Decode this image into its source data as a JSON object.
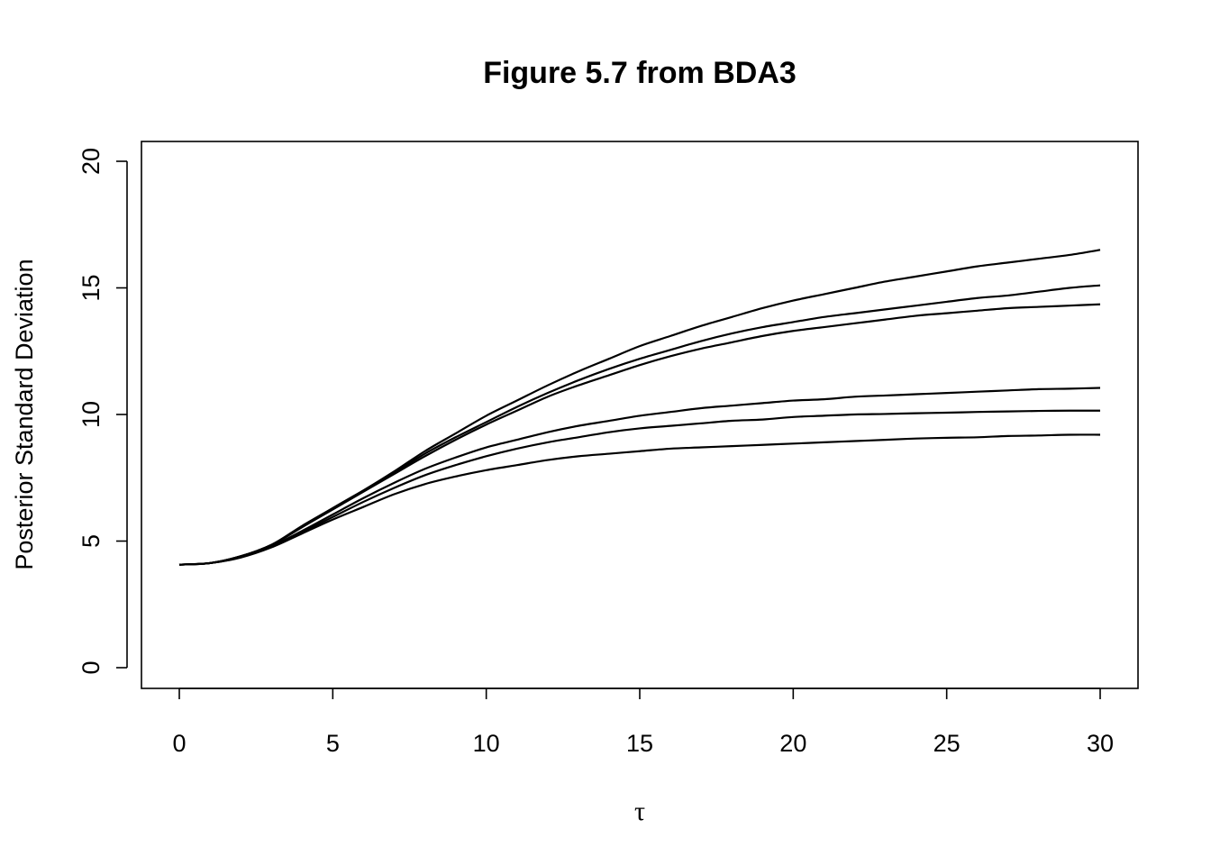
{
  "chart_data": {
    "type": "line",
    "title": "Figure 5.7 from BDA3",
    "xlabel": "τ",
    "ylabel": "Posterior Standard Deviation",
    "xlim": [
      0,
      30
    ],
    "ylim": [
      0,
      20
    ],
    "xticks": [
      "0",
      "5",
      "10",
      "15",
      "20",
      "25",
      "30"
    ],
    "yticks": [
      "0",
      "5",
      "10",
      "15",
      "20"
    ],
    "grid": false,
    "legend": "none",
    "line_color": "#000000",
    "x": [
      0,
      1,
      2,
      3,
      4,
      5,
      6,
      7,
      8,
      9,
      10,
      11,
      12,
      13,
      14,
      15,
      16,
      17,
      18,
      19,
      20,
      21,
      22,
      23,
      24,
      25,
      26,
      27,
      28,
      29,
      30
    ],
    "series": [
      {
        "values": [
          4.07,
          4.13,
          4.4,
          4.85,
          5.6,
          6.3,
          7.0,
          7.75,
          8.55,
          9.25,
          9.95,
          10.55,
          11.15,
          11.7,
          12.2,
          12.7,
          13.1,
          13.5,
          13.85,
          14.2,
          14.5,
          14.75,
          15.0,
          15.25,
          15.45,
          15.65,
          15.85,
          16.0,
          16.15,
          16.3,
          16.5
        ]
      },
      {
        "values": [
          4.07,
          4.13,
          4.4,
          4.85,
          5.55,
          6.3,
          7.0,
          7.7,
          8.45,
          9.1,
          9.7,
          10.3,
          10.85,
          11.35,
          11.8,
          12.2,
          12.55,
          12.9,
          13.2,
          13.45,
          13.65,
          13.85,
          14.0,
          14.15,
          14.3,
          14.45,
          14.6,
          14.7,
          14.85,
          15.0,
          15.1
        ]
      },
      {
        "values": [
          4.07,
          4.13,
          4.4,
          4.85,
          5.55,
          6.25,
          6.95,
          7.65,
          8.35,
          9.0,
          9.6,
          10.15,
          10.7,
          11.15,
          11.55,
          11.95,
          12.3,
          12.6,
          12.85,
          13.1,
          13.3,
          13.45,
          13.6,
          13.75,
          13.9,
          14.0,
          14.1,
          14.2,
          14.25,
          14.3,
          14.35
        ]
      },
      {
        "values": [
          4.07,
          4.13,
          4.38,
          4.8,
          5.4,
          6.05,
          6.7,
          7.3,
          7.85,
          8.3,
          8.7,
          9.0,
          9.3,
          9.55,
          9.75,
          9.95,
          10.1,
          10.25,
          10.35,
          10.45,
          10.55,
          10.6,
          10.7,
          10.75,
          10.8,
          10.85,
          10.9,
          10.95,
          11.0,
          11.02,
          11.05
        ]
      },
      {
        "values": [
          4.07,
          4.13,
          4.36,
          4.78,
          5.35,
          5.95,
          6.55,
          7.1,
          7.6,
          8.0,
          8.35,
          8.65,
          8.9,
          9.1,
          9.3,
          9.45,
          9.55,
          9.65,
          9.75,
          9.8,
          9.9,
          9.95,
          10.0,
          10.02,
          10.05,
          10.07,
          10.1,
          10.12,
          10.14,
          10.15,
          10.15
        ]
      },
      {
        "values": [
          4.07,
          4.13,
          4.35,
          4.75,
          5.3,
          5.85,
          6.35,
          6.85,
          7.25,
          7.55,
          7.8,
          8.0,
          8.2,
          8.35,
          8.45,
          8.55,
          8.65,
          8.7,
          8.75,
          8.8,
          8.85,
          8.9,
          8.95,
          9.0,
          9.05,
          9.08,
          9.1,
          9.15,
          9.17,
          9.2,
          9.2
        ]
      }
    ]
  }
}
